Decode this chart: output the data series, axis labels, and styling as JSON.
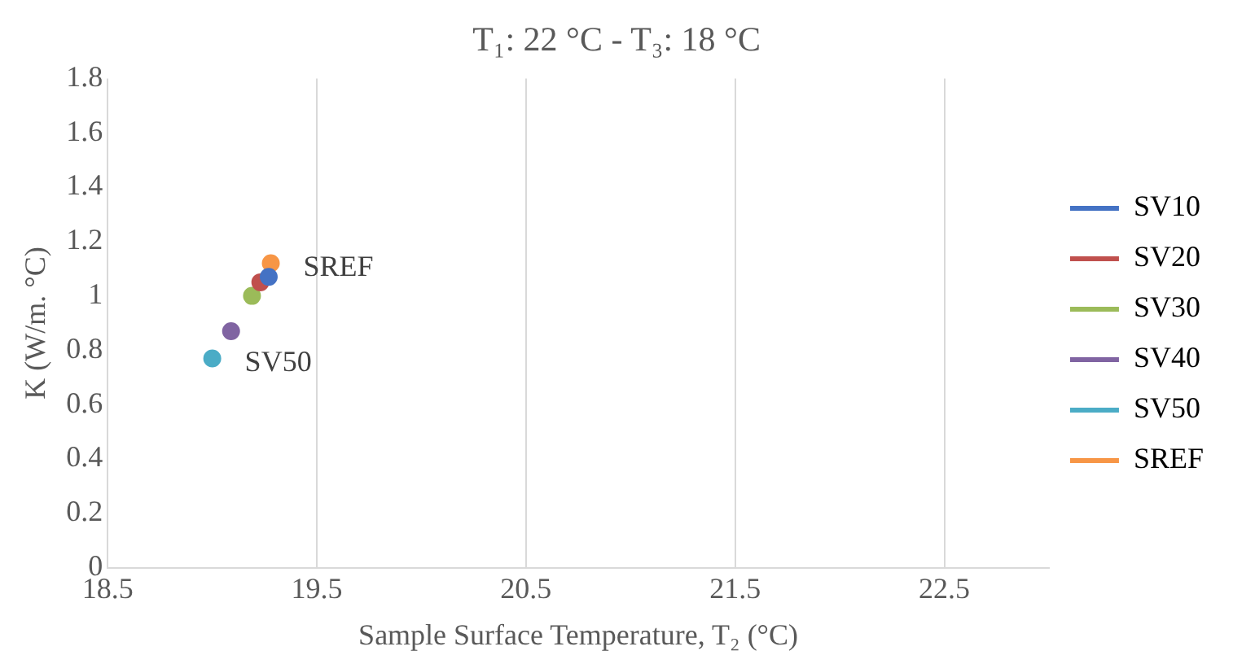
{
  "chart_data": {
    "type": "scatter",
    "title": "T₁: 22 °C - T₃: 18 °C",
    "xlabel": "Sample Surface Temperature, T₂ (°C)",
    "ylabel": "K (W/m. °C)",
    "xlim": [
      18.5,
      23
    ],
    "xticks": [
      18.5,
      19.5,
      20.5,
      21.5,
      22.5
    ],
    "ylim": [
      0,
      1.8
    ],
    "yticks": [
      0,
      0.2,
      0.4,
      0.6,
      0.8,
      1,
      1.2,
      1.4,
      1.6,
      1.8
    ],
    "grid": "x",
    "legend": "right",
    "marker": "circle",
    "annotations": [
      {
        "text": "SREF",
        "x": 19.28,
        "y": 1.12
      },
      {
        "text": "SV50",
        "x": 19.0,
        "y": 0.77
      }
    ],
    "series": [
      {
        "name": "SV10",
        "color": "#4472c4",
        "x": [
          19.27
        ],
        "values": [
          1.07
        ]
      },
      {
        "name": "SV20",
        "color": "#c0504d",
        "x": [
          19.23
        ],
        "values": [
          1.05
        ]
      },
      {
        "name": "SV30",
        "color": "#9bbb59",
        "x": [
          19.19
        ],
        "values": [
          1.0
        ]
      },
      {
        "name": "SV40",
        "color": "#8064a2",
        "x": [
          19.09
        ],
        "values": [
          0.87
        ]
      },
      {
        "name": "SV50",
        "color": "#4bacc6",
        "x": [
          19.0
        ],
        "values": [
          0.77
        ]
      },
      {
        "name": "SREF",
        "color": "#f79646",
        "x": [
          19.28
        ],
        "values": [
          1.12
        ]
      }
    ]
  }
}
